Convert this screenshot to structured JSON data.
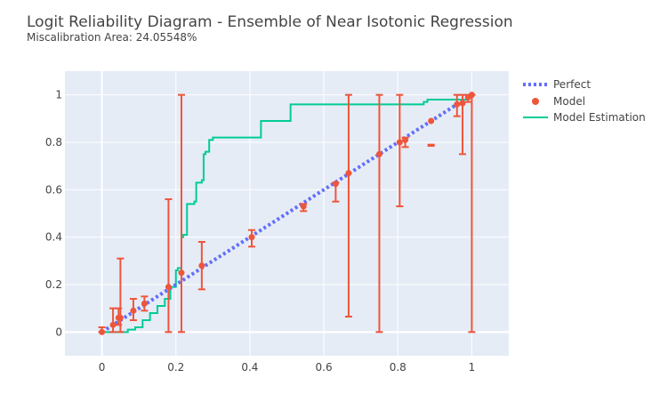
{
  "chart_data": {
    "type": "line",
    "title": "Logit Reliability Diagram - Ensemble of Near Isotonic Regression",
    "subtitle": "Miscalibration Area: 24.05548%",
    "xlabel": "",
    "ylabel": "",
    "xlim": [
      -0.1,
      1.1
    ],
    "ylim": [
      -0.1,
      1.1
    ],
    "x_ticks": [
      0,
      0.2,
      0.4,
      0.6,
      0.8,
      1
    ],
    "x_tick_labels": [
      "0",
      "0.2",
      "0.4",
      "0.6",
      "0.8",
      "1"
    ],
    "y_ticks": [
      0,
      0.2,
      0.4,
      0.6,
      0.8,
      1
    ],
    "y_tick_labels": [
      "0",
      "0.2",
      "0.4",
      "0.6",
      "0.8",
      "1"
    ],
    "grid": true,
    "legend_position": "top-right",
    "colors": {
      "plot_background": "#e5ecf6",
      "grid": "#ffffff",
      "perfect": "#636efa",
      "model": "#ef553b",
      "estimation": "#00cc96"
    },
    "series": [
      {
        "name": "Perfect",
        "kind": "line",
        "style": "dotted",
        "x": [
          0,
          1
        ],
        "y": [
          0,
          1
        ]
      },
      {
        "name": "Model",
        "kind": "scatter",
        "points": [
          {
            "x": 0.0,
            "y": 0.0,
            "ylo": 0.0,
            "yhi": 0.02
          },
          {
            "x": 0.03,
            "y": 0.03,
            "ylo": 0.0,
            "yhi": 0.1
          },
          {
            "x": 0.045,
            "y": 0.06,
            "ylo": 0.03,
            "yhi": 0.1
          },
          {
            "x": 0.05,
            "y": 0.06,
            "ylo": 0.0,
            "yhi": 0.31
          },
          {
            "x": 0.085,
            "y": 0.09,
            "ylo": 0.05,
            "yhi": 0.14
          },
          {
            "x": 0.115,
            "y": 0.12,
            "ylo": 0.09,
            "yhi": 0.15
          },
          {
            "x": 0.18,
            "y": 0.19,
            "ylo": 0.0,
            "yhi": 0.56
          },
          {
            "x": 0.215,
            "y": 0.25,
            "ylo": 0.0,
            "yhi": 1.0
          },
          {
            "x": 0.27,
            "y": 0.28,
            "ylo": 0.18,
            "yhi": 0.38
          },
          {
            "x": 0.405,
            "y": 0.4,
            "ylo": 0.36,
            "yhi": 0.43
          },
          {
            "x": 0.545,
            "y": 0.53,
            "ylo": 0.51,
            "yhi": 0.54
          },
          {
            "x": 0.632,
            "y": 0.625,
            "ylo": 0.55,
            "yhi": 0.63
          },
          {
            "x": 0.667,
            "y": 0.67,
            "ylo": 0.065,
            "yhi": 1.0
          },
          {
            "x": 0.75,
            "y": 0.75,
            "ylo": 0.0,
            "yhi": 1.0
          },
          {
            "x": 0.805,
            "y": 0.8,
            "ylo": 0.53,
            "yhi": 1.0
          },
          {
            "x": 0.82,
            "y": 0.81,
            "ylo": 0.78,
            "yhi": 0.82
          },
          {
            "x": 0.89,
            "y": 0.89,
            "ylo": 0.785,
            "yhi": 0.79
          },
          {
            "x": 0.96,
            "y": 0.96,
            "ylo": 0.91,
            "yhi": 1.0
          },
          {
            "x": 0.975,
            "y": 0.965,
            "ylo": 0.75,
            "yhi": 1.0
          },
          {
            "x": 0.99,
            "y": 0.99,
            "ylo": 0.97,
            "yhi": 1.0
          },
          {
            "x": 1.0,
            "y": 1.0,
            "ylo": 0.0,
            "yhi": 1.0
          }
        ]
      },
      {
        "name": "Model Estimation",
        "kind": "step",
        "x": [
          0.0,
          0.03,
          0.05,
          0.07,
          0.09,
          0.11,
          0.13,
          0.15,
          0.17,
          0.185,
          0.19,
          0.2,
          0.205,
          0.215,
          0.22,
          0.23,
          0.25,
          0.255,
          0.27,
          0.275,
          0.28,
          0.29,
          0.3,
          0.42,
          0.43,
          0.5,
          0.51,
          0.82,
          0.87,
          0.88,
          0.99,
          1.0
        ],
        "y": [
          0.0,
          0.0,
          0.0,
          0.01,
          0.02,
          0.05,
          0.08,
          0.11,
          0.14,
          0.19,
          0.19,
          0.26,
          0.27,
          0.4,
          0.41,
          0.54,
          0.55,
          0.63,
          0.64,
          0.75,
          0.76,
          0.81,
          0.82,
          0.82,
          0.89,
          0.89,
          0.96,
          0.96,
          0.97,
          0.98,
          0.99,
          1.0
        ]
      }
    ]
  }
}
